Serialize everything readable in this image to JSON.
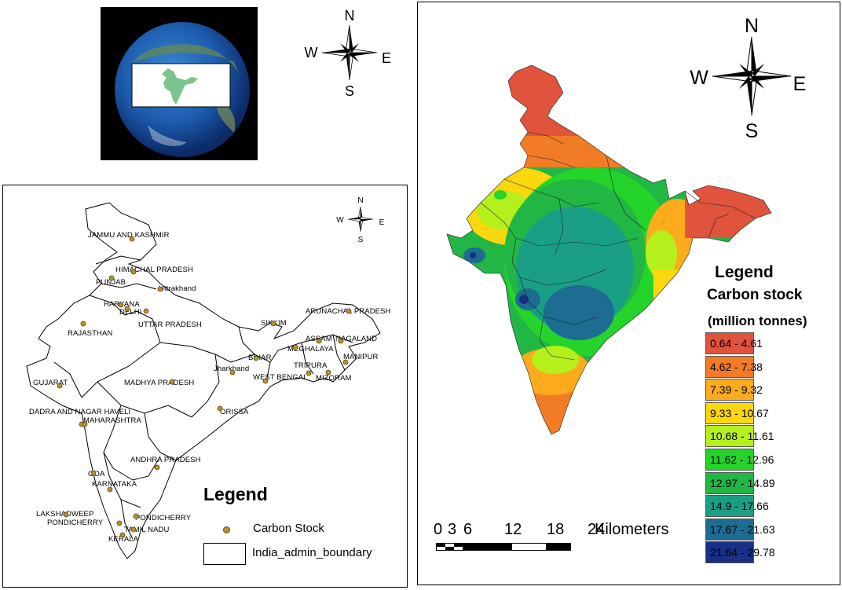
{
  "globe_panel": {
    "compass": {
      "n": "N",
      "e": "E",
      "s": "S",
      "w": "W"
    }
  },
  "left_map": {
    "compass": {
      "n": "N",
      "e": "E",
      "s": "S",
      "w": "W"
    },
    "states": [
      "JAMMU AND KASHMIR",
      "HIMACHAL PRADESH",
      "PUNJAB",
      "Uttrakhand",
      "HARYANA",
      "DELHI",
      "UTTAR PRADESH",
      "RAJASTHAN",
      "SIKKIM",
      "ARUNACHAL PRADESH",
      "ASSAM",
      "NAGALAND",
      "MEGHALAYA",
      "MANIPUR",
      "BIHAR",
      "Jharkhand",
      "TRIPURA",
      "WEST BENGAL",
      "MIZORAM",
      "GUJARAT",
      "MADHYA PRADESH",
      "ORISSA",
      "DADRA AND NAGAR HAVELI",
      "MAHARASHTRA",
      "ANDHRA PRADESH",
      "GOA",
      "KARNATAKA",
      "LAKSHADWEEP",
      "PONDICHERRY",
      "PONDICHERRY",
      "TAMIL NADU",
      "KERALA"
    ],
    "legend": {
      "title": "Legend",
      "items": [
        {
          "label": "Carbon Stock",
          "symbol": "point",
          "color": "#b8922e"
        },
        {
          "label": "India_admin_boundary",
          "symbol": "polygon",
          "color": "#ffffff"
        }
      ]
    }
  },
  "right_map": {
    "compass": {
      "n": "N",
      "e": "E",
      "s": "S",
      "w": "W"
    },
    "legend": {
      "title": "Legend",
      "subtitle": "Carbon stock",
      "unit": "(million tonnes)",
      "classes": [
        {
          "label": "0.64 - 4.61",
          "color": "#e0533c"
        },
        {
          "label": "4.62 - 7.38",
          "color": "#f27c26"
        },
        {
          "label": "7.39 - 9.32",
          "color": "#fbab1c"
        },
        {
          "label": "9.33 - 10.67",
          "color": "#fbd70e"
        },
        {
          "label": "10.68 - 11.61",
          "color": "#b6f01c"
        },
        {
          "label": "11.62 - 12.96",
          "color": "#25d42a"
        },
        {
          "label": "12.97 - 14.89",
          "color": "#22b644"
        },
        {
          "label": "14.9 - 17.66",
          "color": "#1a9f86"
        },
        {
          "label": "17.67 - 21.63",
          "color": "#1c6d91"
        },
        {
          "label": "21.64 - 29.78",
          "color": "#1a2f86"
        }
      ]
    },
    "scale_bar": {
      "ticks": [
        "0",
        "3",
        "6",
        "12",
        "18",
        "24"
      ],
      "unit": "Kilometers"
    }
  }
}
